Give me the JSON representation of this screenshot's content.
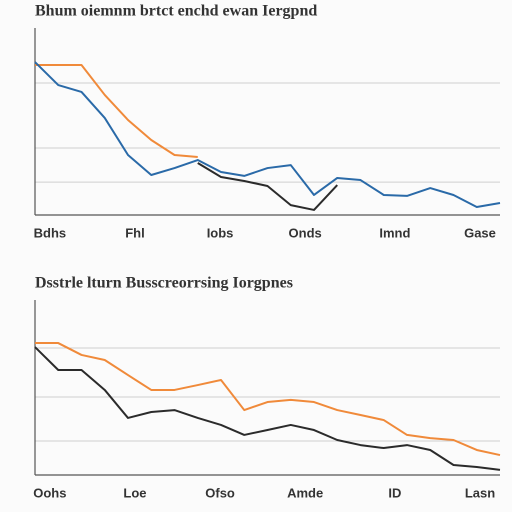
{
  "chart_data": [
    {
      "type": "line",
      "title": "Bhum oiemnm brtct enchd ewan Iergpnd",
      "x": [
        0,
        5,
        10,
        15,
        20,
        25,
        30,
        35,
        40,
        45,
        50,
        55,
        60,
        65,
        70,
        75,
        80,
        85,
        90,
        95,
        100
      ],
      "xlim": [
        0,
        100
      ],
      "xticks": [
        {
          "value": 3.2,
          "label": "Bdhs"
        },
        {
          "value": 21.5,
          "label": "Fhl"
        },
        {
          "value": 39.8,
          "label": "Iobs"
        },
        {
          "value": 58.1,
          "label": "Onds"
        },
        {
          "value": 77.4,
          "label": "Imnd"
        },
        {
          "value": 95.7,
          "label": "Gase"
        }
      ],
      "ylim": [
        0,
        100
      ],
      "grid_lines": [
        17.6,
        35.8,
        70.6
      ],
      "series": [
        {
          "color": "#f08a3a",
          "values": [
            80.2,
            80.2,
            80.2,
            64.2,
            50.8,
            40.1,
            32.1,
            31.0,
            null,
            null,
            null,
            null,
            null,
            null,
            null,
            null,
            null,
            null,
            null,
            null,
            null
          ]
        },
        {
          "color": "#2a6aa8",
          "values": [
            81.8,
            69.5,
            65.8,
            51.9,
            32.1,
            21.4,
            25.1,
            29.4,
            23,
            20.9,
            25.1,
            26.7,
            10.7,
            19.8,
            18.7,
            10.7,
            10.2,
            14.4,
            10.7,
            4.3,
            6.4
          ]
        },
        {
          "color": "#2b2b2b",
          "values": [
            null,
            null,
            null,
            null,
            null,
            null,
            null,
            27.8,
            20.3,
            18.2,
            15.5,
            5.3,
            2.7,
            16.0,
            null,
            null,
            null,
            null,
            null,
            null,
            null
          ]
        }
      ]
    },
    {
      "type": "line",
      "title": "Dsstrle lturn Busscreorrsing Iorgpnes",
      "x": [
        0,
        5,
        10,
        15,
        20,
        25,
        30,
        35,
        40,
        45,
        50,
        55,
        60,
        65,
        70,
        75,
        80,
        85,
        90,
        95,
        100
      ],
      "xlim": [
        0,
        100
      ],
      "xticks": [
        {
          "value": 3.2,
          "label": "Oohs"
        },
        {
          "value": 21.5,
          "label": "Loe"
        },
        {
          "value": 39.8,
          "label": "Ofso"
        },
        {
          "value": 58.1,
          "label": "Amde"
        },
        {
          "value": 77.4,
          "label": "ID"
        },
        {
          "value": 95.7,
          "label": "Lasn"
        }
      ],
      "ylim": [
        0,
        100
      ],
      "grid_lines": [
        19.4,
        44.6,
        72.6
      ],
      "series": [
        {
          "color": "#f08a3a",
          "values": [
            75.4,
            75.4,
            68.6,
            65.7,
            57.1,
            48.6,
            48.6,
            51.4,
            54.3,
            37.1,
            41.7,
            42.9,
            41.7,
            37.1,
            34.3,
            31.4,
            22.9,
            21.1,
            20,
            14.3,
            11.4
          ]
        },
        {
          "color": "#2b2b2b",
          "values": [
            73.1,
            60,
            60,
            48.6,
            32.6,
            36,
            37.1,
            32.6,
            28.6,
            22.9,
            25.7,
            28.6,
            25.7,
            20,
            17.1,
            15.4,
            17.1,
            14.3,
            5.7,
            4.6,
            2.9
          ]
        }
      ]
    }
  ]
}
